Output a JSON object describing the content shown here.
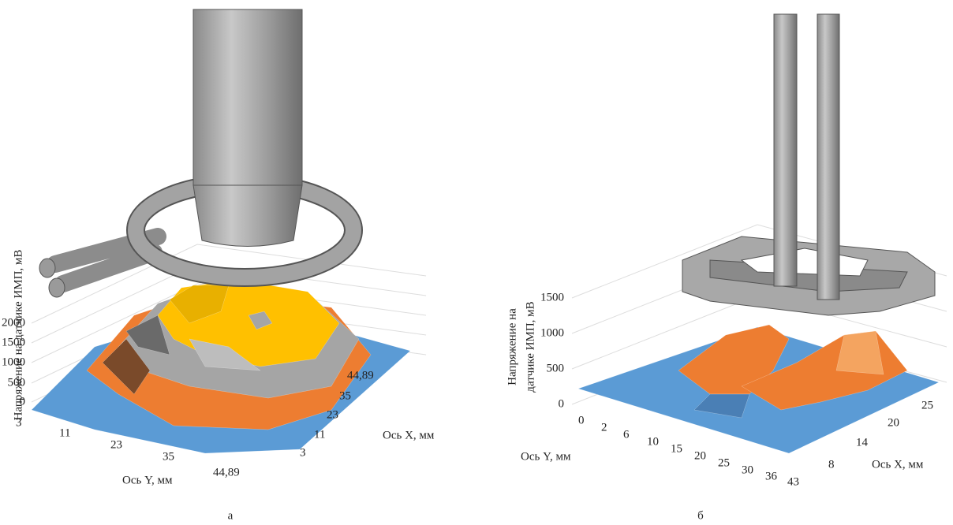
{
  "panels": [
    {
      "caption": "а",
      "z_axis": {
        "label": "Напряжение на датчике ИМП, мВ",
        "ticks": [
          0,
          500,
          1000,
          1500,
          2000
        ]
      },
      "y_axis": {
        "label": "Ось Y, мм",
        "ticks": [
          3,
          11,
          23,
          35,
          "44,89"
        ]
      },
      "x_axis": {
        "label": "Ось X, мм",
        "ticks": [
          3,
          11,
          23,
          35,
          "44,89"
        ]
      }
    },
    {
      "caption": "б",
      "z_axis": {
        "label": [
          "Напряжение на",
          "датчике ИМП, мВ"
        ],
        "ticks": [
          0,
          500,
          1000,
          1500
        ]
      },
      "y_axis": {
        "label": "Ось Y, мм",
        "ticks": [
          0,
          2,
          6,
          10,
          15,
          20,
          25,
          30,
          36,
          43
        ]
      },
      "x_axis": {
        "label": "Ось X, мм",
        "ticks": [
          8,
          14,
          20,
          25
        ]
      }
    }
  ]
}
